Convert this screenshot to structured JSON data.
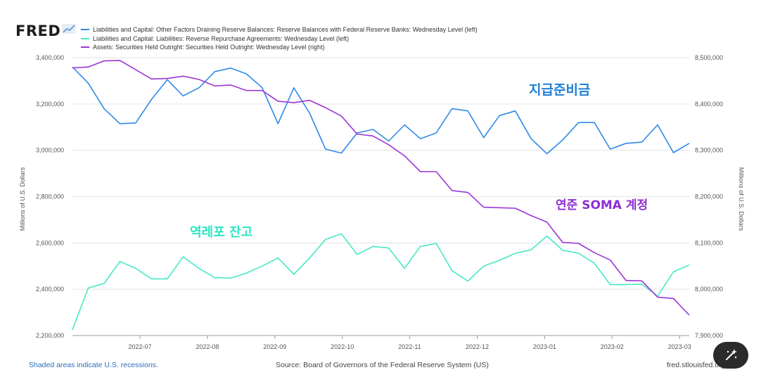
{
  "brand": {
    "name": "FRED"
  },
  "legend": [
    {
      "label": "Liabilities and Capital: Other Factors Draining Reserve Balances: Reserve Balances with Federal Reserve Banks: Wednesday Level (left)",
      "color": "#2f8ae8"
    },
    {
      "label": "Liabilities and Capital: Liabilities: Reverse Repurchase Agreements: Wednesday Level (left)",
      "color": "#47e8c6"
    },
    {
      "label": "Assets: Securities Held Outright: Securities Held Outright: Wednesday Level (right)",
      "color": "#9c35d8"
    }
  ],
  "annotations": {
    "reserves": "지급준비금",
    "soma": "연준 SOMA 계정",
    "rrp": "역레포 잔고"
  },
  "footer": {
    "recessions": "Shaded areas indicate U.S. recessions.",
    "source": "Source: Board of Governors of the Federal Reserve System (US)",
    "site": "fred.stlouisfed.org"
  },
  "chart_data": {
    "type": "line",
    "x_ticks": [
      "2022-07",
      "2022-08",
      "2022-09",
      "2022-10",
      "2022-11",
      "2022-12",
      "2023-01",
      "2023-02",
      "2023-03"
    ],
    "left_axis": {
      "label": "Millions of U.S. Dollars",
      "range": [
        2200000,
        3400000
      ],
      "ticks": [
        "2,200,000",
        "2,400,000",
        "2,600,000",
        "2,800,000",
        "3,000,000",
        "3,200,000",
        "3,400,000"
      ]
    },
    "right_axis": {
      "label": "Millions of U.S. Dollars",
      "range": [
        7900000,
        8500000
      ],
      "ticks": [
        "7,900,000",
        "8,000,000",
        "8,100,000",
        "8,200,000",
        "8,300,000",
        "8,400,000",
        "8,500,000"
      ]
    },
    "grid": true,
    "series": [
      {
        "name": "Reserve Balances with Federal Reserve Banks (left)",
        "axis": "left",
        "color": "#2f8ae8",
        "values": [
          3360000,
          3290000,
          3180000,
          3115000,
          3118000,
          3220000,
          3305000,
          3235000,
          3270000,
          3340000,
          3355000,
          3330000,
          3270000,
          3115000,
          3270000,
          3160000,
          3005000,
          2988000,
          3075000,
          3090000,
          3040000,
          3110000,
          3050000,
          3075000,
          3180000,
          3170000,
          3055000,
          3150000,
          3170000,
          3050000,
          2985000,
          3045000,
          3120000,
          3120000,
          3005000,
          3030000,
          3035000,
          3110000,
          2990000,
          3030000
        ]
      },
      {
        "name": "Reverse Repurchase Agreements (left)",
        "axis": "left",
        "color": "#47e8c6",
        "values": [
          2225000,
          2405000,
          2425000,
          2520000,
          2490000,
          2445000,
          2445000,
          2540000,
          2490000,
          2450000,
          2448000,
          2470000,
          2500000,
          2535000,
          2465000,
          2535000,
          2615000,
          2640000,
          2550000,
          2585000,
          2578000,
          2490000,
          2585000,
          2598000,
          2480000,
          2435000,
          2500000,
          2525000,
          2555000,
          2570000,
          2630000,
          2568000,
          2555000,
          2512000,
          2420000,
          2420000,
          2422000,
          2370000,
          2475000,
          2505000
        ]
      },
      {
        "name": "Securities Held Outright (right)",
        "axis": "right",
        "color": "#9c35d8",
        "values": [
          8478000,
          8480000,
          8493000,
          8494000,
          8474000,
          8454000,
          8455000,
          8460000,
          8453000,
          8439000,
          8441000,
          8429000,
          8429000,
          8406000,
          8403000,
          8408000,
          8392000,
          8374000,
          8335000,
          8331000,
          8312000,
          8288000,
          8254000,
          8254000,
          8213000,
          8209000,
          8177000,
          8176000,
          8175000,
          8159000,
          8145000,
          8101000,
          8099000,
          8079000,
          8063000,
          8019000,
          8018000,
          7983000,
          7980000,
          7944000
        ]
      }
    ]
  }
}
